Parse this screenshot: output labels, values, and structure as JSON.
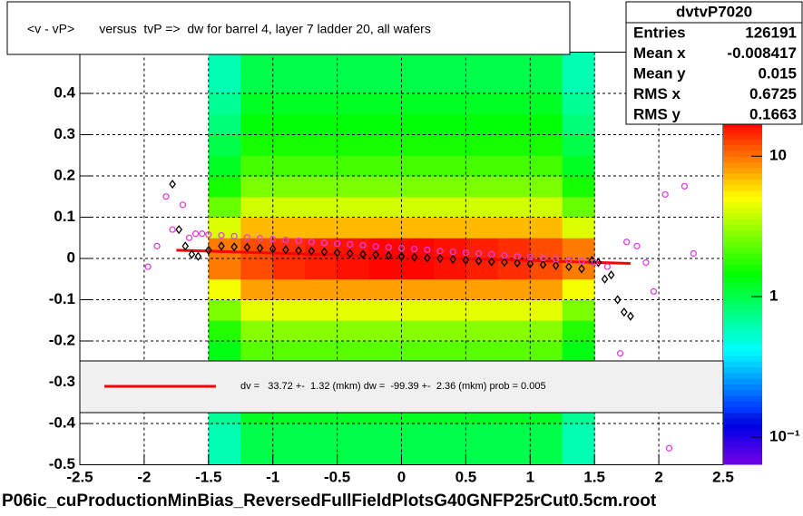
{
  "chart_data": {
    "type": "scatter",
    "title": "<v - vP>       versus  tvP =>  dw for barrel 4, layer 7 ladder 20, all wafers",
    "footer": "P06ic_cuProductionMinBias_ReversedFullFieldPlotsG40GNFP25rCut0.5cm.root",
    "xlim": [
      -2.5,
      2.5
    ],
    "ylim": [
      -0.5,
      0.5
    ],
    "xticks": [
      -2.5,
      -2,
      -1.5,
      -1,
      -0.5,
      0,
      0.5,
      1,
      1.5,
      2,
      2.5
    ],
    "yticks": [
      -0.5,
      -0.4,
      -0.3,
      -0.2,
      -0.1,
      0,
      0.1,
      0.2,
      0.3,
      0.4
    ],
    "grid": true,
    "zlim": [
      0.064,
      17.4
    ],
    "zlog": true,
    "zticks": [
      10,
      1,
      {
        "value": 0.1,
        "label": "10⁻¹"
      }
    ],
    "heatmap": {
      "xbins": [
        -1.5,
        -1.25,
        -1,
        -0.75,
        -0.5,
        -0.25,
        0,
        0.25,
        0.5,
        0.75,
        1,
        1.25,
        1.5
      ],
      "ybins": [
        -0.5,
        -0.45,
        -0.4,
        -0.35,
        -0.3,
        -0.25,
        -0.2,
        -0.15,
        -0.1,
        -0.05,
        0,
        0.05,
        0.1,
        0.15,
        0.2,
        0.25,
        0.3,
        0.35,
        0.4,
        0.45,
        0.5
      ],
      "z": [
        [
          0.6,
          1,
          1,
          1,
          1,
          1,
          1,
          1,
          1,
          1,
          1,
          0.6
        ],
        [
          0.6,
          1,
          1,
          1,
          1,
          1,
          1,
          1,
          1,
          1,
          1,
          0.6
        ],
        [
          0.7,
          1.2,
          1.2,
          1.2,
          1.2,
          1.2,
          1.2,
          1.2,
          1.2,
          1.2,
          1.2,
          0.7
        ],
        [
          0.8,
          1.4,
          1.4,
          1.4,
          1.4,
          1.4,
          1.4,
          1.4,
          1.4,
          1.4,
          1.4,
          0.8
        ],
        [
          1.1,
          1.8,
          1.8,
          1.8,
          1.8,
          1.8,
          1.8,
          1.8,
          1.8,
          1.8,
          1.8,
          1.1
        ],
        [
          1.3,
          2.2,
          2.2,
          2.2,
          2.2,
          2.2,
          2.2,
          2.2,
          2.2,
          2.2,
          2.2,
          1.3
        ],
        [
          1.7,
          2.8,
          2.8,
          2.8,
          2.8,
          2.8,
          2.8,
          2.8,
          2.8,
          2.8,
          2.8,
          1.7
        ],
        [
          2.6,
          4.4,
          4.4,
          4.4,
          4.4,
          4.4,
          4.4,
          4.4,
          4.4,
          4.4,
          4.4,
          2.6
        ],
        [
          4.8,
          8,
          8,
          8,
          8,
          8,
          8,
          8,
          8,
          8,
          8,
          4.8
        ],
        [
          9.6,
          12,
          14,
          15,
          16,
          17,
          17,
          16,
          15,
          14,
          12,
          9.6
        ],
        [
          9.6,
          12,
          14,
          15,
          16,
          17,
          17,
          16,
          15,
          14,
          12,
          9.6
        ],
        [
          4.2,
          7,
          7,
          7,
          7,
          7,
          7,
          7,
          7,
          7,
          7,
          4.2
        ],
        [
          2.4,
          4,
          4,
          4,
          4,
          4,
          4,
          4,
          4,
          4,
          4,
          2.4
        ],
        [
          1.6,
          2.6,
          2.6,
          2.6,
          2.6,
          2.6,
          2.6,
          2.6,
          2.6,
          2.6,
          2.6,
          1.6
        ],
        [
          1.2,
          2,
          2,
          2,
          2,
          2,
          2,
          2,
          2,
          2,
          2,
          1.2
        ],
        [
          1,
          1.6,
          1.6,
          1.6,
          1.6,
          1.6,
          1.6,
          1.6,
          1.6,
          1.6,
          1.6,
          1
        ],
        [
          0.8,
          1.4,
          1.4,
          1.4,
          1.4,
          1.4,
          1.4,
          1.4,
          1.4,
          1.4,
          1.4,
          0.8
        ],
        [
          0.7,
          1.2,
          1.2,
          1.2,
          1.2,
          1.2,
          1.2,
          1.2,
          1.2,
          1.2,
          1.2,
          0.7
        ],
        [
          0.6,
          1,
          1,
          1,
          1,
          1,
          1,
          1,
          1,
          1,
          1,
          0.6
        ],
        [
          0.6,
          1,
          1,
          1,
          1,
          1,
          1,
          1,
          1,
          1,
          1,
          0.6
        ]
      ]
    },
    "series": [
      {
        "color": "#000000",
        "marker": "diamond",
        "x": [
          -1.78,
          -1.73,
          -1.68,
          -1.63,
          -1.58,
          -1.5,
          -1.4,
          -1.3,
          -1.2,
          -1.1,
          -1,
          -0.9,
          -0.8,
          -0.7,
          -0.6,
          -0.5,
          -0.4,
          -0.3,
          -0.2,
          -0.1,
          0,
          0.1,
          0.2,
          0.3,
          0.4,
          0.5,
          0.6,
          0.7,
          0.8,
          0.9,
          1,
          1.1,
          1.2,
          1.3,
          1.4,
          1.48,
          1.53,
          1.58,
          1.63,
          1.68,
          1.73,
          1.78
        ],
        "values": [
          0.18,
          0.07,
          0.03,
          0.01,
          0.005,
          0.02,
          0.03,
          0.028,
          0.027,
          0.025,
          0.023,
          0.021,
          0.019,
          0.018,
          0.016,
          0.014,
          0.012,
          0.01,
          0.009,
          0.007,
          0.005,
          0.003,
          0.001,
          0,
          -0.002,
          -0.004,
          -0.006,
          -0.008,
          -0.009,
          -0.011,
          -0.013,
          -0.015,
          -0.017,
          -0.02,
          -0.025,
          -0.005,
          -0.01,
          -0.05,
          -0.04,
          -0.1,
          -0.13,
          -0.14
        ]
      },
      {
        "color": "#e040e0",
        "marker": "circle",
        "x": [
          -1.97,
          -1.9,
          -1.83,
          -1.78,
          -1.7,
          -1.65,
          -1.6,
          -1.55,
          -1.5,
          -1.4,
          -1.3,
          -1.2,
          -1.1,
          -1,
          -0.9,
          -0.8,
          -0.7,
          -0.6,
          -0.5,
          -0.4,
          -0.3,
          -0.2,
          -0.1,
          0,
          0.1,
          0.2,
          0.3,
          0.4,
          0.5,
          0.6,
          0.7,
          0.8,
          0.9,
          1,
          1.1,
          1.2,
          1.3,
          1.4,
          1.5,
          1.6,
          1.7,
          1.75,
          1.83,
          1.9,
          1.96,
          2.05,
          2.08,
          2.2,
          2.27
        ],
        "values": [
          -0.02,
          0.03,
          0.15,
          0.07,
          0.13,
          0.05,
          0.06,
          0.06,
          0.058,
          0.056,
          0.054,
          0.051,
          0.049,
          0.047,
          0.045,
          0.043,
          0.04,
          0.038,
          0.036,
          0.034,
          0.032,
          0.029,
          0.027,
          0.025,
          0.023,
          0.021,
          0.018,
          0.016,
          0.014,
          0.012,
          0.01,
          0.007,
          0.005,
          0.003,
          0.001,
          -0.002,
          -0.004,
          -0.006,
          -0.01,
          -0.02,
          -0.23,
          0.04,
          0.03,
          -0.01,
          -0.08,
          0.155,
          -0.46,
          0.175,
          0.012
        ]
      }
    ],
    "fit": {
      "label": "dv =   33.72 +-  1.32 (mkm) dw =  -99.39 +-  2.36 (mkm) prob = 0.005",
      "color": "#ff0000",
      "x": [
        -1.75,
        1.78
      ],
      "values": [
        0.02,
        -0.012
      ]
    },
    "stats": {
      "title": "dvtvP7020",
      "rows": [
        [
          "Entries",
          "126191"
        ],
        [
          "Mean x",
          "-0.008417"
        ],
        [
          "Mean y",
          "0.015"
        ],
        [
          "RMS x",
          "0.6725"
        ],
        [
          "RMS y",
          "0.1663"
        ]
      ]
    }
  }
}
